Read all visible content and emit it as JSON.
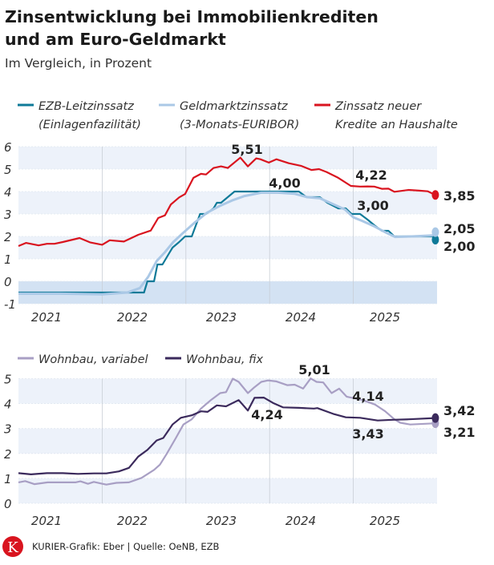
{
  "title_line1": "Zinsentwicklung bei Immobilienkrediten",
  "title_line2": "und am Euro-Geldmarkt",
  "subtitle": "Im Vergleich, in Prozent",
  "footer": "KURIER-Grafik: Eber | Quelle: OeNB, EZB",
  "logo_letter": "K",
  "colors": {
    "ezb": "#0f7a98",
    "euribor": "#aac8e6",
    "haushalte": "#d9141f",
    "variabel": "#a89fc4",
    "fix": "#3b2a5c",
    "band": "#edf2fa",
    "negative": "#d3e2f3",
    "logo": "#d9141f"
  },
  "chart_data": [
    {
      "type": "line",
      "xlim": [
        2021,
        2026
      ],
      "ylim": [
        -1,
        6
      ],
      "yticks": [
        "6",
        "5",
        "4",
        "3",
        "2",
        "1",
        "0",
        "-1"
      ],
      "xtick_labels": [
        "2021",
        "2022",
        "2023",
        "2024",
        "2025"
      ],
      "legend": [
        {
          "line1": "EZB-Leitzinssatz",
          "line2": "(Einlagenfazilität)"
        },
        {
          "line1": "Geldmarktzinssatz",
          "line2": "(3-Monats-EURIBOR)"
        },
        {
          "line1": "Zinssatz neuer",
          "line2": "Kredite an Haushalte"
        }
      ],
      "series": [
        {
          "name": "EZB-Leitzinssatz (Einlagenfazilität)",
          "x": [
            2021.0,
            2022.5,
            2022.54,
            2022.62,
            2022.66,
            2022.72,
            2022.8,
            2022.84,
            2022.92,
            2022.99,
            2023.07,
            2023.12,
            2023.17,
            2023.24,
            2023.33,
            2023.37,
            2023.42,
            2023.5,
            2023.58,
            2023.63,
            2023.69,
            2024.35,
            2024.44,
            2024.6,
            2024.69,
            2024.82,
            2024.91,
            2024.98,
            2025.08,
            2025.17,
            2025.25,
            2025.34,
            2025.42,
            2025.49,
            2025.98
          ],
          "y": [
            -0.5,
            -0.5,
            0,
            0,
            0.75,
            0.75,
            1.25,
            1.5,
            1.75,
            2.0,
            2.0,
            2.5,
            3.0,
            3.0,
            3.25,
            3.5,
            3.5,
            3.75,
            4.0,
            4.0,
            4.0,
            4.0,
            3.75,
            3.75,
            3.5,
            3.25,
            3.25,
            3.0,
            3.0,
            2.75,
            2.5,
            2.25,
            2.25,
            2.0,
            2.0
          ]
        },
        {
          "name": "Geldmarktzinssatz (3-Monats-EURIBOR)",
          "x": [
            2021.0,
            2021.5,
            2022.0,
            2022.3,
            2022.45,
            2022.55,
            2022.65,
            2022.75,
            2022.85,
            2022.95,
            2023.1,
            2023.25,
            2023.4,
            2023.55,
            2023.7,
            2023.9,
            2024.1,
            2024.3,
            2024.45,
            2024.6,
            2024.75,
            2024.9,
            2025.0,
            2025.1,
            2025.25,
            2025.4,
            2025.5,
            2025.7,
            2025.98
          ],
          "y": [
            -0.55,
            -0.55,
            -0.58,
            -0.5,
            -0.3,
            0.2,
            0.9,
            1.3,
            1.75,
            2.1,
            2.6,
            3.05,
            3.35,
            3.6,
            3.8,
            3.95,
            3.95,
            3.9,
            3.75,
            3.7,
            3.45,
            3.2,
            2.85,
            2.7,
            2.45,
            2.15,
            1.98,
            2.0,
            2.05
          ]
        },
        {
          "name": "Zinssatz neuer Kredite an Haushalte",
          "x": [
            2021.0,
            2021.09,
            2021.24,
            2021.34,
            2021.43,
            2021.53,
            2021.73,
            2021.86,
            2022.0,
            2022.09,
            2022.26,
            2022.43,
            2022.58,
            2022.67,
            2022.75,
            2022.82,
            2022.92,
            2022.99,
            2023.09,
            2023.18,
            2023.24,
            2023.33,
            2023.42,
            2023.5,
            2023.65,
            2023.74,
            2023.84,
            2023.89,
            2023.99,
            2024.08,
            2024.23,
            2024.38,
            2024.5,
            2024.59,
            2024.68,
            2024.82,
            2024.97,
            2025.08,
            2025.17,
            2025.25,
            2025.34,
            2025.42,
            2025.49,
            2025.66,
            2025.79,
            2025.89,
            2025.98
          ],
          "y": [
            1.57,
            1.71,
            1.6,
            1.67,
            1.67,
            1.75,
            1.93,
            1.73,
            1.63,
            1.83,
            1.77,
            2.07,
            2.26,
            2.82,
            2.94,
            3.42,
            3.74,
            3.89,
            4.61,
            4.79,
            4.76,
            5.05,
            5.12,
            5.05,
            5.51,
            5.12,
            5.48,
            5.44,
            5.29,
            5.44,
            5.26,
            5.14,
            4.96,
            5.0,
            4.87,
            4.61,
            4.25,
            4.22,
            4.23,
            4.22,
            4.12,
            4.13,
            3.99,
            4.07,
            4.04,
            4.01,
            3.85
          ]
        }
      ],
      "annotations": [
        "5,51",
        "4,00",
        "4,22",
        "3,00",
        "3,85",
        "2,05",
        "2,00"
      ]
    },
    {
      "type": "line",
      "xlim": [
        2021,
        2026
      ],
      "ylim": [
        0,
        5
      ],
      "yticks": [
        "5",
        "4",
        "3",
        "2",
        "1",
        "0"
      ],
      "xtick_labels": [
        "2021",
        "2022",
        "2023",
        "2024",
        "2025"
      ],
      "legend": [
        {
          "line1": "Wohnbau, variabel"
        },
        {
          "line1": "Wohnbau, fix"
        }
      ],
      "series": [
        {
          "name": "Wohnbau, variabel",
          "x": [
            2021.0,
            2021.08,
            2021.19,
            2021.35,
            2021.53,
            2021.68,
            2021.74,
            2021.83,
            2021.9,
            2022.05,
            2022.17,
            2022.32,
            2022.47,
            2022.62,
            2022.69,
            2022.77,
            2022.88,
            2022.97,
            2023.07,
            2023.18,
            2023.29,
            2023.41,
            2023.48,
            2023.56,
            2023.63,
            2023.74,
            2023.82,
            2023.9,
            2023.98,
            2024.08,
            2024.21,
            2024.3,
            2024.4,
            2024.49,
            2024.56,
            2024.64,
            2024.74,
            2024.83,
            2024.92,
            2025.11,
            2025.26,
            2025.38,
            2025.49,
            2025.56,
            2025.68,
            2025.98
          ],
          "y": [
            0.84,
            0.89,
            0.77,
            0.84,
            0.84,
            0.84,
            0.88,
            0.78,
            0.86,
            0.75,
            0.82,
            0.84,
            1.02,
            1.34,
            1.55,
            1.98,
            2.62,
            3.16,
            3.37,
            3.8,
            4.12,
            4.42,
            4.46,
            5.0,
            4.87,
            4.42,
            4.66,
            4.87,
            4.93,
            4.89,
            4.74,
            4.76,
            4.6,
            5.01,
            4.87,
            4.85,
            4.42,
            4.6,
            4.28,
            4.14,
            3.96,
            3.69,
            3.37,
            3.23,
            3.16,
            3.21
          ]
        },
        {
          "name": "Wohnbau, fix",
          "x": [
            2021.0,
            2021.15,
            2021.34,
            2021.53,
            2021.71,
            2021.9,
            2022.05,
            2022.2,
            2022.32,
            2022.43,
            2022.54,
            2022.65,
            2022.73,
            2022.84,
            2022.94,
            2023.07,
            2023.18,
            2023.26,
            2023.37,
            2023.48,
            2023.63,
            2023.74,
            2023.82,
            2023.93,
            2024.05,
            2024.16,
            2024.35,
            2024.53,
            2024.57,
            2024.76,
            2024.91,
            2025.08,
            2025.29,
            2025.47,
            2025.66,
            2025.98
          ],
          "y": [
            1.21,
            1.16,
            1.21,
            1.21,
            1.18,
            1.2,
            1.2,
            1.28,
            1.42,
            1.87,
            2.14,
            2.52,
            2.62,
            3.16,
            3.43,
            3.53,
            3.69,
            3.67,
            3.93,
            3.89,
            4.14,
            3.72,
            4.23,
            4.24,
            4.01,
            3.85,
            3.83,
            3.8,
            3.82,
            3.59,
            3.45,
            3.43,
            3.32,
            3.35,
            3.37,
            3.42
          ]
        }
      ],
      "annotations": [
        "5,01",
        "4,14",
        "4,24",
        "3,43",
        "3,42",
        "3,21"
      ]
    }
  ]
}
